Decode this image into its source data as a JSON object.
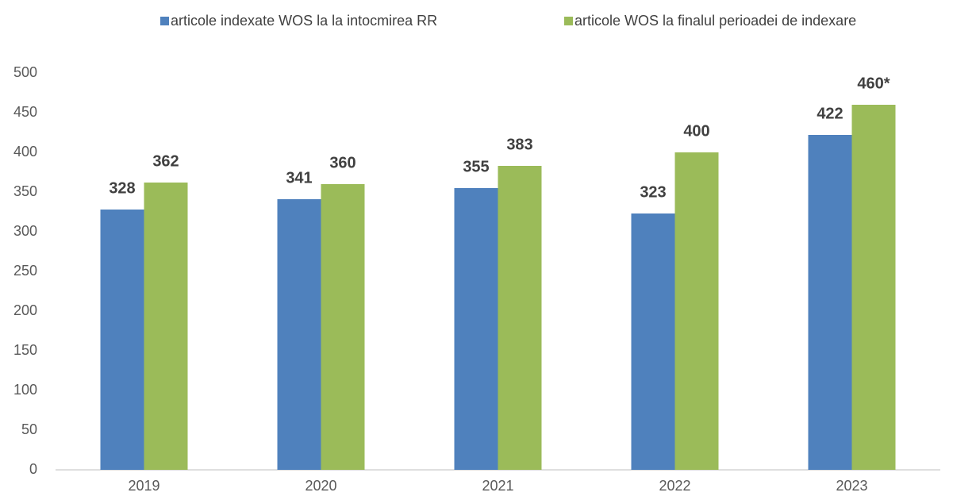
{
  "chart_data": {
    "type": "bar",
    "categories": [
      "2019",
      "2020",
      "2021",
      "2022",
      "2023"
    ],
    "series": [
      {
        "name": "articole indexate WOS la la intocmirea RR",
        "color": "#4f81bd",
        "values": [
          328,
          341,
          355,
          323,
          422
        ]
      },
      {
        "name": "articole WOS la finalul perioadei de indexare",
        "color": "#9bbb59",
        "values": [
          362,
          360,
          383,
          400,
          460
        ],
        "value_labels": [
          "362",
          "360",
          "383",
          "400",
          "460*"
        ]
      }
    ],
    "ylim": [
      0,
      500
    ],
    "yticks": [
      0,
      50,
      100,
      150,
      200,
      250,
      300,
      350,
      400,
      450,
      500
    ],
    "grid": false
  }
}
